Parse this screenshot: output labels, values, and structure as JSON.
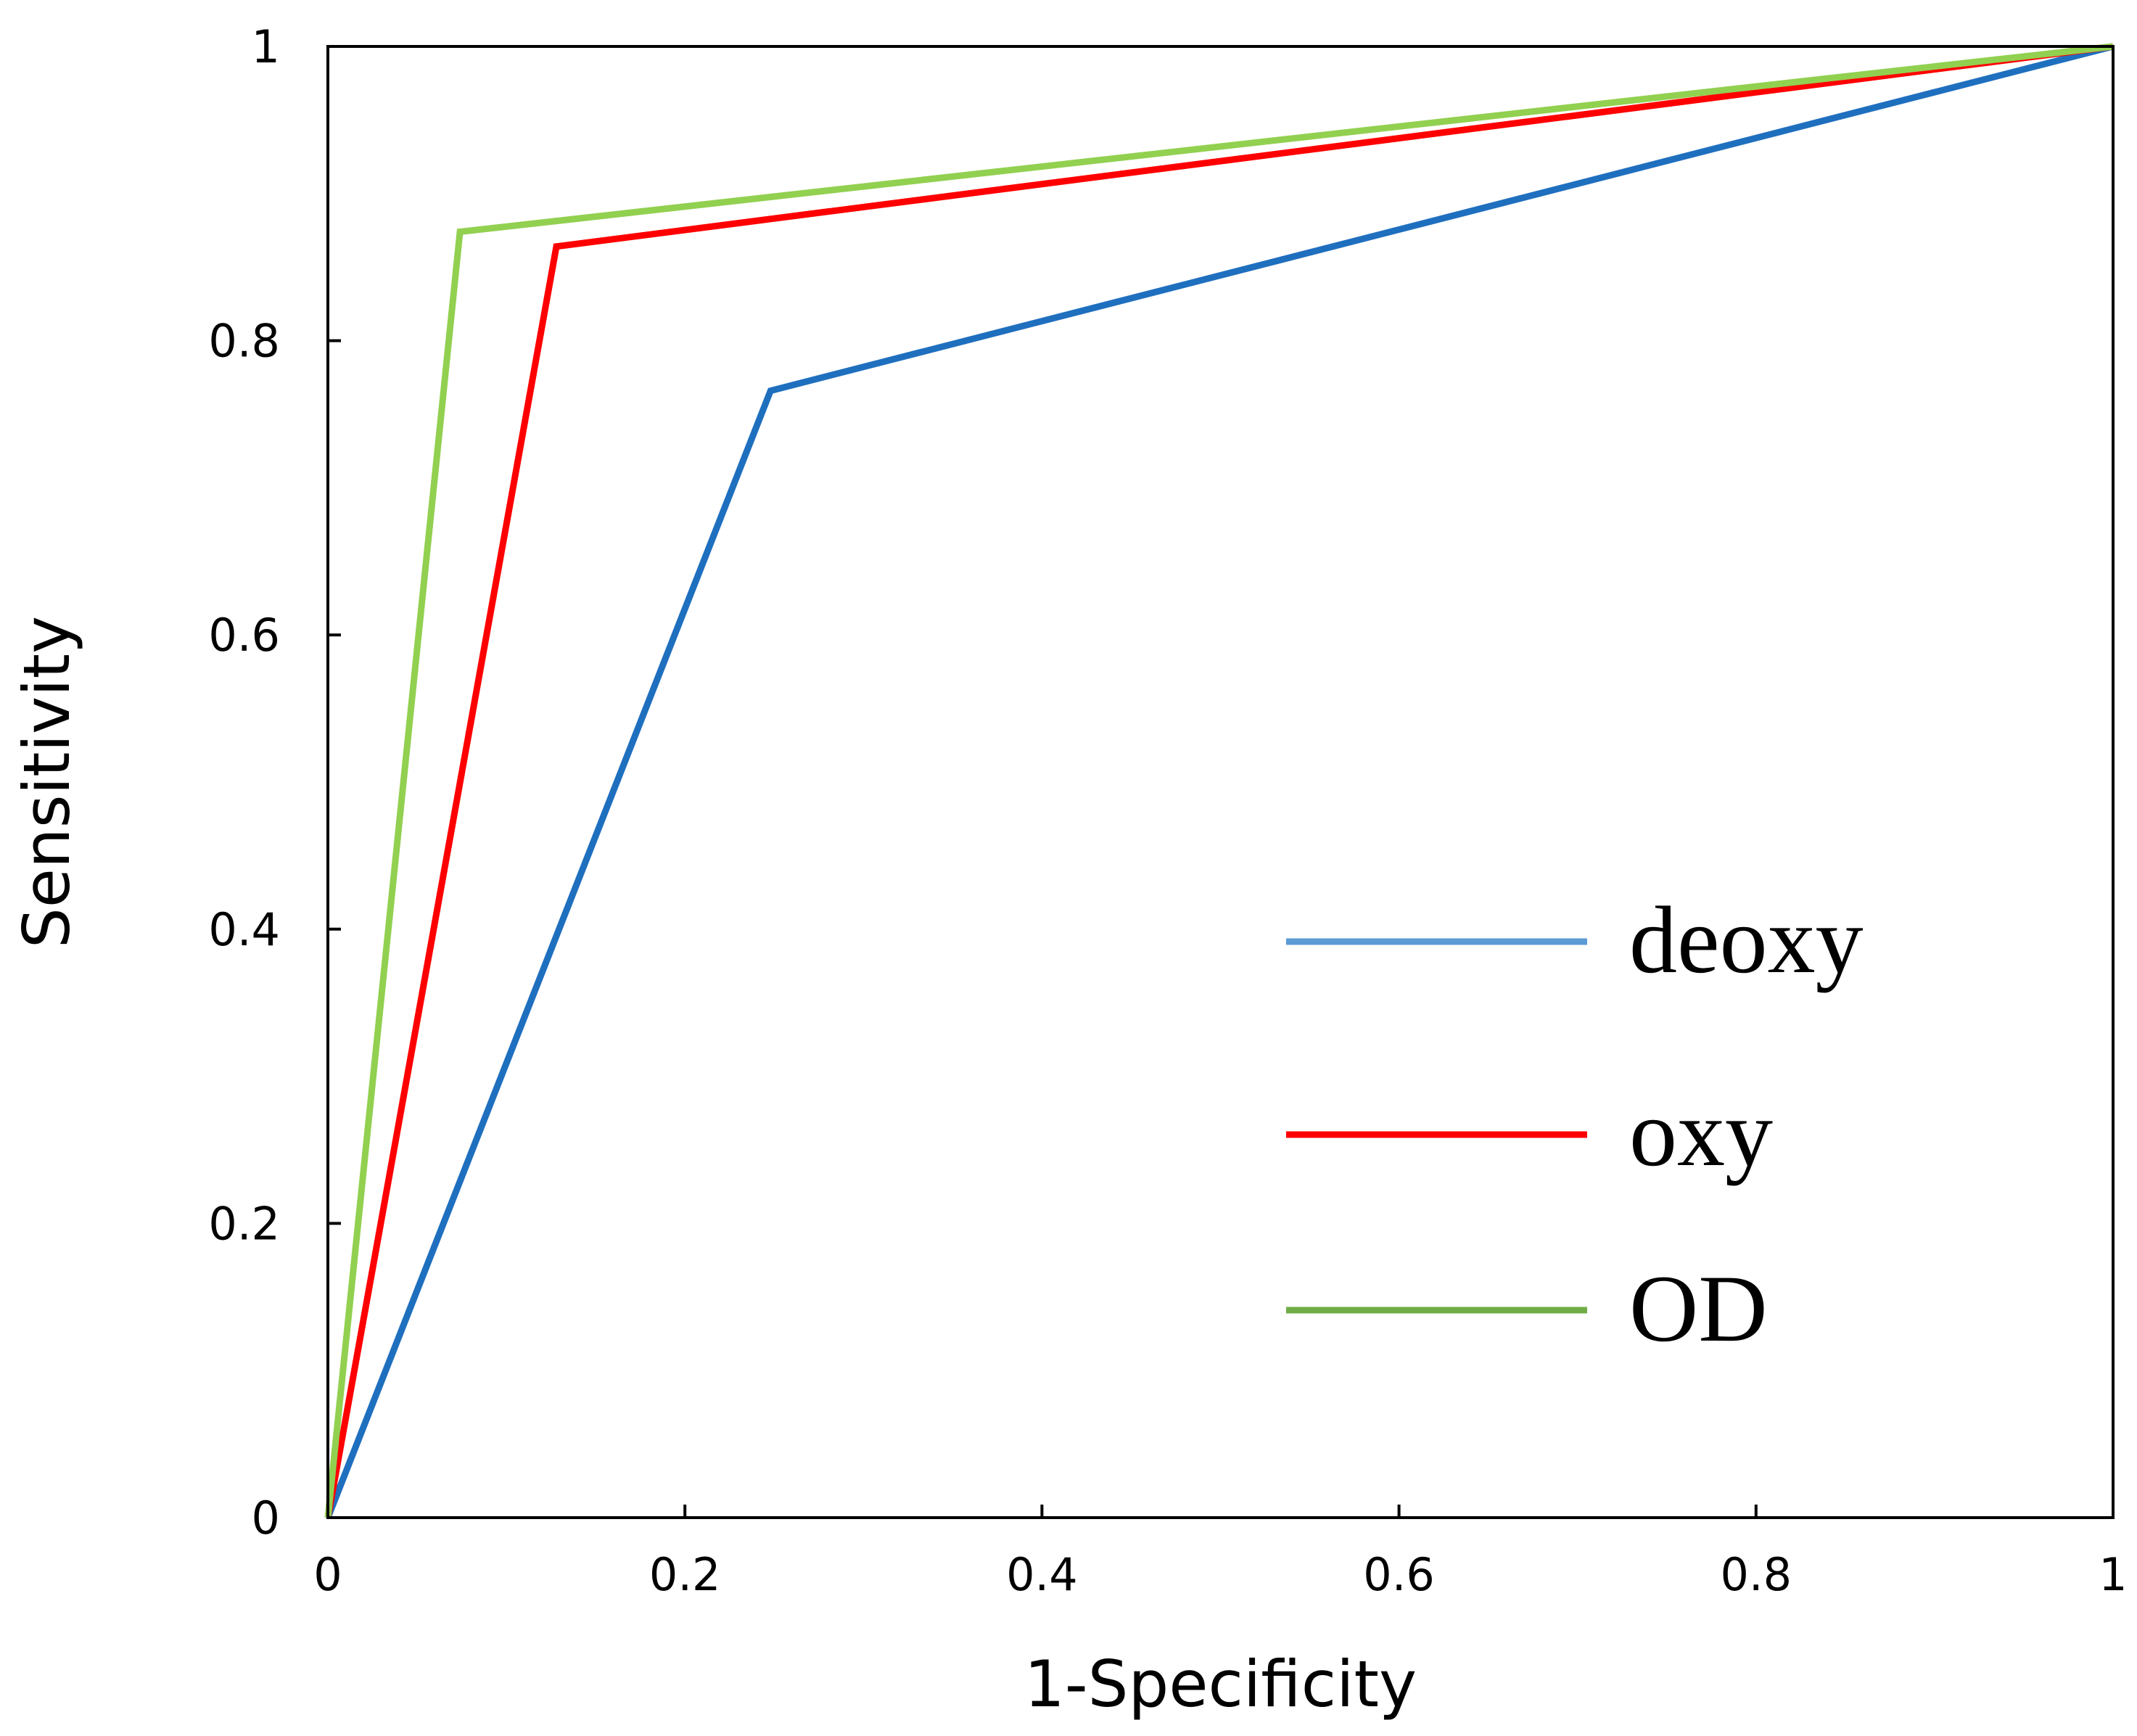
{
  "chart_data": {
    "type": "line",
    "title": "",
    "xlabel": "1-Specificity",
    "ylabel": "Sensitivity",
    "xlim": [
      0,
      1
    ],
    "ylim": [
      0,
      1
    ],
    "x_ticks": [
      "0",
      "0.2",
      "0.4",
      "0.6",
      "0.8",
      "1"
    ],
    "y_ticks": [
      "0",
      "0.2",
      "0.4",
      "0.6",
      "0.8",
      "1"
    ],
    "grid": false,
    "legend_position": "bottom-right",
    "series": [
      {
        "name": "deoxy",
        "color": "#1f6fbf",
        "legend_color": "#5b9bd5",
        "x": [
          0,
          0.248,
          1
        ],
        "y": [
          0,
          0.766,
          1
        ]
      },
      {
        "name": "oxy",
        "color": "#ff0000",
        "legend_color": "#ff0000",
        "x": [
          0,
          0.128,
          1
        ],
        "y": [
          0,
          0.864,
          1
        ]
      },
      {
        "name": "OD",
        "color": "#92d050",
        "legend_color": "#70ad47",
        "x": [
          0,
          0.074,
          1
        ],
        "y": [
          0,
          0.874,
          1
        ]
      }
    ]
  }
}
